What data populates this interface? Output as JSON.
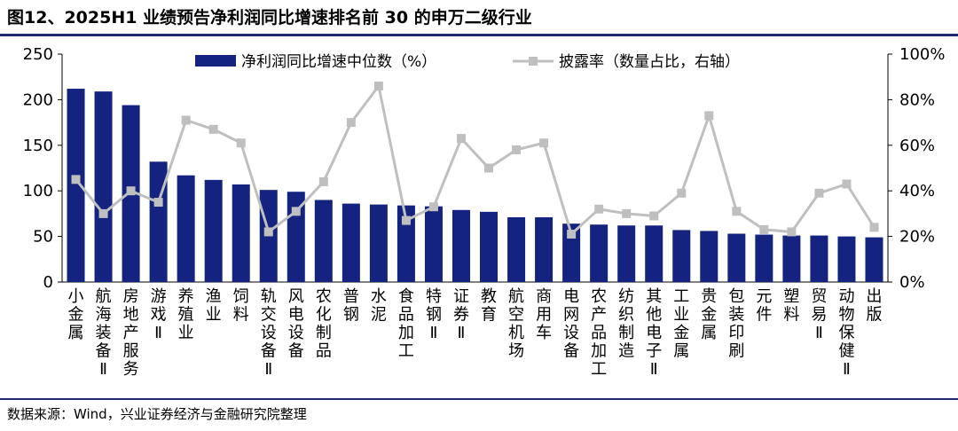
{
  "figure": {
    "title": "图12、2025H1 业绩预告净利润同比增速排名前 30 的申万二级行业",
    "source": "数据来源：Wind，兴业证券经济与金融研究院整理"
  },
  "colors": {
    "bar": "#13237f",
    "line": "#bfbfbf",
    "axis": "#000000",
    "text": "#000000"
  },
  "chart_data": {
    "type": "bar",
    "categories": [
      "小金属",
      "航海装备Ⅱ",
      "房地产服务",
      "游戏Ⅱ",
      "养殖业",
      "渔业",
      "饲料",
      "轨交设备Ⅱ",
      "风电设备",
      "农化制品",
      "普钢",
      "水泥",
      "食品加工",
      "特钢Ⅱ",
      "证券Ⅱ",
      "教育",
      "航空机场",
      "商用车",
      "电网设备",
      "农产品加工",
      "纺织制造",
      "其他电子Ⅱ",
      "工业金属",
      "贵金属",
      "包装印刷",
      "元件",
      "塑料",
      "贸易Ⅱ",
      "动物保健Ⅱ",
      "出版"
    ],
    "series": [
      {
        "name": "净利润同比增速中位数（%）",
        "axis": "left",
        "type": "bar",
        "values": [
          212,
          209,
          194,
          132,
          117,
          112,
          107,
          101,
          99,
          90,
          86,
          85,
          84,
          83,
          79,
          77,
          71,
          71,
          64,
          63,
          62,
          62,
          57,
          56,
          53,
          52,
          51,
          51,
          50,
          49
        ]
      },
      {
        "name": "披露率（数量占比，右轴）",
        "axis": "right",
        "type": "line",
        "values": [
          45,
          30,
          40,
          35,
          71,
          67,
          61,
          22,
          31,
          44,
          70,
          86,
          27,
          33,
          63,
          50,
          58,
          61,
          21,
          32,
          30,
          29,
          39,
          73,
          31,
          23,
          22,
          39,
          43,
          24
        ]
      }
    ],
    "y_left": {
      "min": 0,
      "max": 250,
      "ticks": [
        "0",
        "50",
        "100",
        "150",
        "200",
        "250"
      ]
    },
    "y_right": {
      "min": 0,
      "max": 100,
      "ticks": [
        "0%",
        "20%",
        "40%",
        "60%",
        "80%",
        "100%"
      ]
    },
    "legend_position": "top",
    "grid": false
  }
}
